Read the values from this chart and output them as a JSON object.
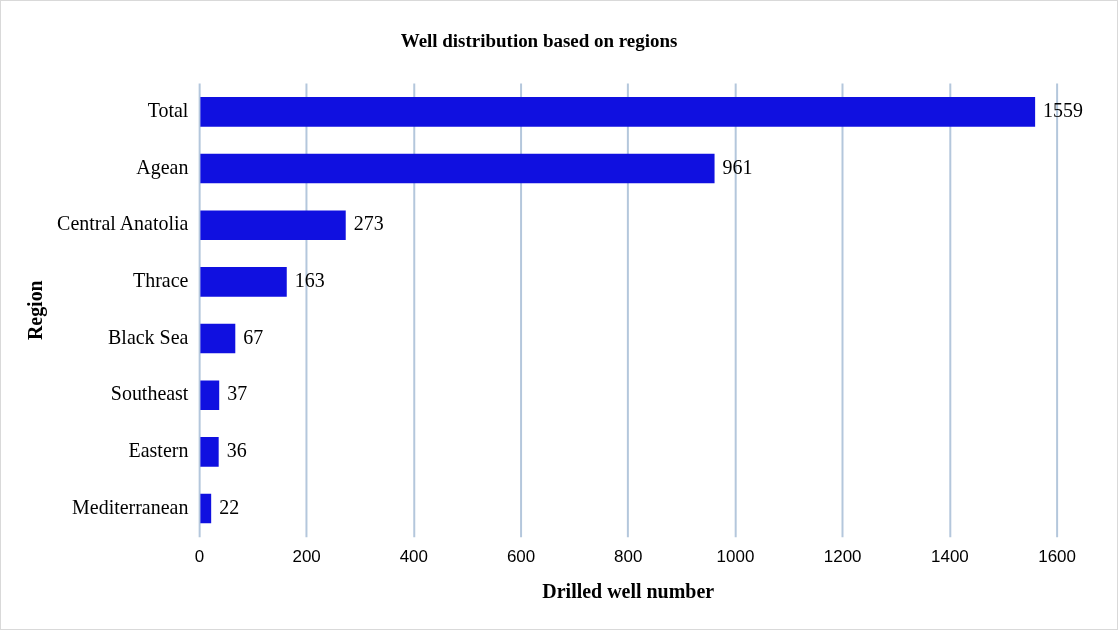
{
  "chart_data": {
    "type": "bar",
    "orientation": "horizontal",
    "title": "Well distribution based on regions",
    "xlabel": "Drilled well number",
    "ylabel": "Region",
    "categories": [
      "Total",
      "Agean",
      "Central Anatolia",
      "Thrace",
      "Black Sea",
      "Southeast",
      "Eastern",
      "Mediterranean"
    ],
    "values": [
      1559,
      961,
      273,
      163,
      67,
      37,
      36,
      22
    ],
    "color": "#1010e0",
    "xlim": [
      0,
      1600
    ],
    "xticks": [
      0,
      200,
      400,
      600,
      800,
      1000,
      1200,
      1400,
      1600
    ],
    "grid": "x",
    "data_labels": true,
    "legend": false
  }
}
